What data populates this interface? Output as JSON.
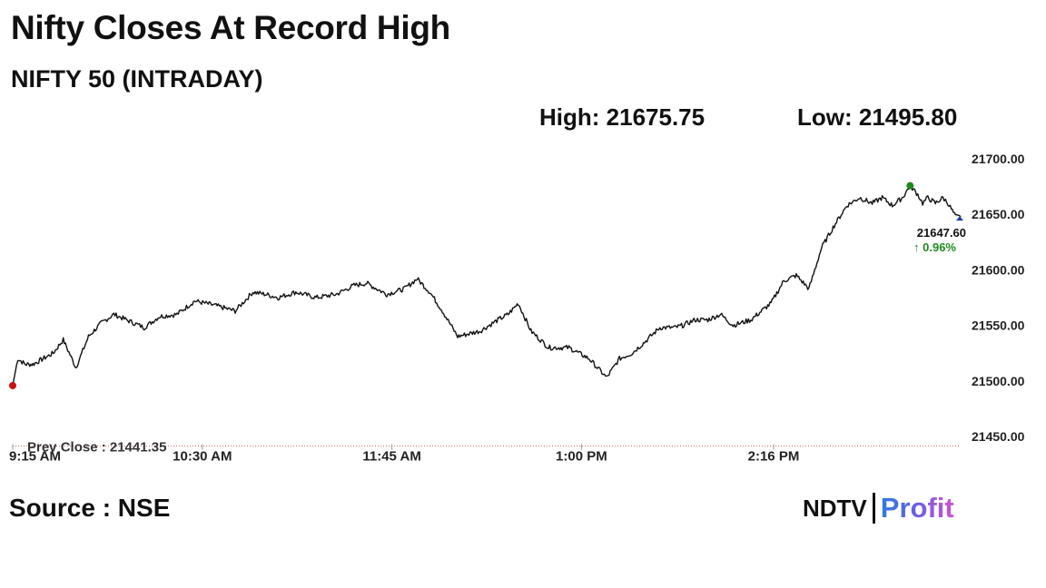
{
  "header": {
    "title": "Nifty Closes At Record High",
    "subtitle": "NIFTY 50 (INTRADAY)",
    "high_label": "High: 21675.75",
    "low_label": "Low: 21495.80"
  },
  "footer": {
    "source": "Source : NSE",
    "logo_ndtv": "NDTV",
    "logo_profit": "Profit"
  },
  "colors": {
    "line": "#111111",
    "open_marker": "#cc1111",
    "high_marker": "#1e8a1e",
    "last_marker": "#1f3bb3",
    "prev_close_line": "#c66666",
    "change_up": "#1e8a1e"
  },
  "chart_data": {
    "type": "line",
    "title": "NIFTY 50 (INTRADAY)",
    "ylim": [
      21450,
      21700
    ],
    "y_ticks": [
      "21700.00",
      "21650.00",
      "21600.00",
      "21550.00",
      "21500.00",
      "21450.00"
    ],
    "x_ticks": [
      "9:15 AM",
      "10:30 AM",
      "11:45 AM",
      "1:00 PM",
      "2:16 PM"
    ],
    "x_tick_minutes": [
      0,
      75,
      150,
      225,
      301
    ],
    "x_range_minutes": [
      0,
      375
    ],
    "prev_close": 21441.35,
    "prev_close_label": "Prev Close : 21441.35",
    "last_value": "21647.60",
    "change": "↑ 0.96%",
    "grid": false,
    "series": [
      {
        "x": [
          0,
          2,
          5,
          8,
          12,
          16,
          20,
          25,
          30,
          35,
          40,
          45,
          52,
          58,
          65,
          72,
          80,
          88,
          95,
          100,
          105,
          112,
          120,
          128,
          135,
          140,
          148,
          155,
          160,
          165,
          170,
          176,
          185,
          192,
          196,
          200,
          205,
          212,
          220,
          228,
          235,
          240,
          245,
          250,
          256,
          262,
          265,
          270,
          275,
          280,
          285,
          292,
          300,
          305,
          310,
          315,
          320,
          325,
          330,
          335,
          340,
          344,
          348,
          352,
          355,
          358,
          360,
          362,
          365,
          368,
          370,
          373,
          375
        ],
        "y": [
          21495.8,
          21520,
          21515,
          21515,
          21520,
          21525,
          21537,
          21512,
          21540,
          21552,
          21560,
          21555,
          21548,
          21558,
          21560,
          21572,
          21568,
          21563,
          21580,
          21578,
          21575,
          21580,
          21575,
          21578,
          21586,
          21588,
          21578,
          21583,
          21592,
          21580,
          21563,
          21540,
          21545,
          21555,
          21560,
          21570,
          21545,
          21530,
          21530,
          21520,
          21503,
          21520,
          21525,
          21535,
          21548,
          21548,
          21550,
          21555,
          21555,
          21560,
          21550,
          21555,
          21570,
          21590,
          21595,
          21583,
          21620,
          21640,
          21658,
          21665,
          21660,
          21665,
          21658,
          21665,
          21675.75,
          21668,
          21660,
          21665,
          21660,
          21665,
          21660,
          21648,
          21647.6
        ]
      }
    ]
  }
}
